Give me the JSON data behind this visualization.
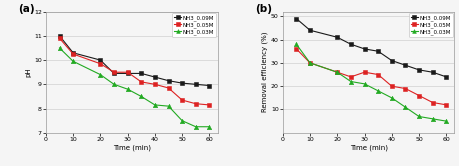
{
  "a": {
    "x_black": [
      5,
      10,
      20,
      25,
      30,
      35,
      40,
      45,
      50,
      55,
      60
    ],
    "y_black": [
      11.0,
      10.3,
      10.0,
      9.45,
      9.45,
      9.45,
      9.3,
      9.15,
      9.05,
      9.0,
      8.95
    ],
    "x_red": [
      5,
      10,
      20,
      25,
      30,
      35,
      40,
      45,
      50,
      55,
      60
    ],
    "y_red": [
      10.9,
      10.25,
      9.85,
      9.5,
      9.5,
      9.1,
      9.0,
      8.85,
      8.35,
      8.2,
      8.15
    ],
    "x_green": [
      5,
      10,
      20,
      25,
      30,
      35,
      40,
      45,
      50,
      55,
      60
    ],
    "y_green": [
      10.5,
      9.95,
      9.4,
      9.0,
      8.8,
      8.5,
      8.15,
      8.1,
      7.5,
      7.25,
      7.25
    ],
    "xlabel": "Time (min)",
    "ylabel": "pH",
    "xlim": [
      0,
      63
    ],
    "ylim": [
      7,
      12
    ],
    "yticks": [
      7,
      8,
      9,
      10,
      11,
      12
    ],
    "xticks": [
      0,
      10,
      20,
      30,
      40,
      50,
      60
    ],
    "label_black": "NH3_0.09M",
    "label_red": "NH3_0.05M",
    "label_green": "NH3_0.03M",
    "panel_label": "(a)"
  },
  "b": {
    "x_black": [
      5,
      10,
      20,
      25,
      30,
      35,
      40,
      45,
      50,
      55,
      60
    ],
    "y_black": [
      49,
      44,
      41,
      38,
      36,
      35,
      31,
      29,
      27,
      26,
      24
    ],
    "x_red": [
      5,
      10,
      20,
      25,
      30,
      35,
      40,
      45,
      50,
      55,
      60
    ],
    "y_red": [
      36,
      30,
      26,
      24,
      26,
      25,
      20,
      19,
      16,
      13,
      12
    ],
    "x_green": [
      5,
      10,
      20,
      25,
      30,
      35,
      40,
      45,
      50,
      55,
      60
    ],
    "y_green": [
      38,
      30,
      26,
      22,
      21,
      18,
      15,
      11,
      7,
      6,
      5
    ],
    "xlabel": "Time (min)",
    "ylabel": "Removal efficiency (%)",
    "xlim": [
      0,
      63
    ],
    "ylim": [
      0,
      52
    ],
    "yticks": [
      10,
      20,
      30,
      40,
      50
    ],
    "xticks": [
      0,
      10,
      20,
      30,
      40,
      50,
      60
    ],
    "label_black": "NH3_0.09M",
    "label_red": "NH3_0.05M",
    "label_green": "NH3_0.03M",
    "panel_label": "(b)"
  },
  "color_black": "#1a1a1a",
  "color_red": "#dd2222",
  "color_green": "#22aa22",
  "linewidth": 0.8,
  "markersize": 3.2,
  "grid_color": "#d0d0d0",
  "bg_color": "#f5f5f5",
  "fontsize_label": 5.0,
  "fontsize_tick": 4.5,
  "fontsize_legend": 4.0,
  "fontsize_panel": 7.5
}
